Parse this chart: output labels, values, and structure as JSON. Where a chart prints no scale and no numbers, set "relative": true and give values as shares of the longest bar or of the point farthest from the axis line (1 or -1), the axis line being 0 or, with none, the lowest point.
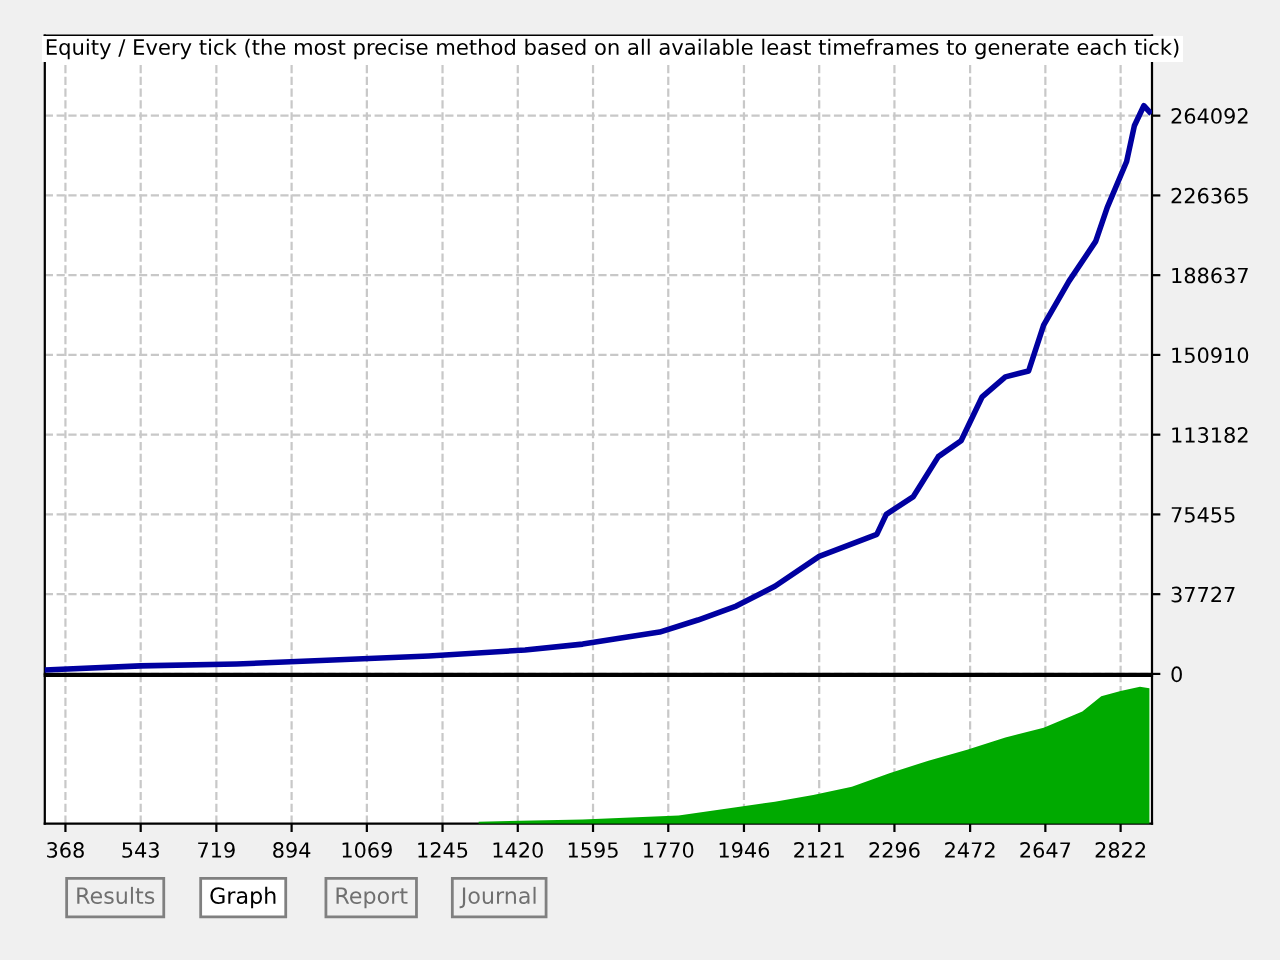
{
  "chart_data": [
    {
      "type": "line",
      "title": "Equity / Every tick (the most precise method based on all available least timeframes to generate each tick)",
      "x": [
        320,
        543,
        766,
        990,
        1213,
        1437,
        1571,
        1660,
        1750,
        1839,
        1928,
        2018,
        2121,
        2255,
        2277,
        2340,
        2398,
        2451,
        2500,
        2554,
        2608,
        2643,
        2702,
        2764,
        2791,
        2836,
        2854,
        2876,
        2889
      ],
      "series": [
        {
          "color": "#0000a0",
          "values": [
            1900,
            3800,
            4700,
            6600,
            8500,
            11300,
            14100,
            17000,
            19800,
            25500,
            32100,
            41500,
            55600,
            66000,
            75500,
            83900,
            102800,
            110300,
            131100,
            140500,
            143300,
            165000,
            185800,
            204600,
            220700,
            242400,
            259300,
            268800,
            265900
          ]
        }
      ],
      "xlim": [
        320,
        2895
      ],
      "ylim": [
        0,
        302000
      ],
      "xticks": [
        368,
        543,
        719,
        894,
        1069,
        1245,
        1420,
        1595,
        1770,
        1946,
        2121,
        2296,
        2472,
        2647,
        2822
      ],
      "yticks": [
        0,
        37727,
        75455,
        113182,
        150910,
        188637,
        226365,
        264092
      ],
      "tick_labels": "y",
      "grid": true,
      "line_style": "solid",
      "marker": "none",
      "annotations": [
        "Results",
        "Graph",
        "Report",
        "Journal"
      ]
    },
    {
      "type": "area",
      "relative": true,
      "x": [
        1329,
        1571,
        1794,
        1928,
        2018,
        2107,
        2197,
        2286,
        2375,
        2465,
        2554,
        2643,
        2733,
        2777,
        2822,
        2867,
        2889
      ],
      "series": [
        {
          "color": "#00aa00",
          "values": [
            0.015,
            0.03,
            0.06,
            0.12,
            0.16,
            0.21,
            0.27,
            0.37,
            0.46,
            0.54,
            0.63,
            0.7,
            0.82,
            0.93,
            0.97,
            1,
            0.99
          ]
        }
      ],
      "xlim": [
        320,
        2895
      ],
      "xticks": [
        368,
        543,
        719,
        894,
        1069,
        1245,
        1420,
        1595,
        1770,
        1946,
        2121,
        2296,
        2472,
        2647,
        2822
      ],
      "tick_labels": "x",
      "grid": "x"
    }
  ]
}
